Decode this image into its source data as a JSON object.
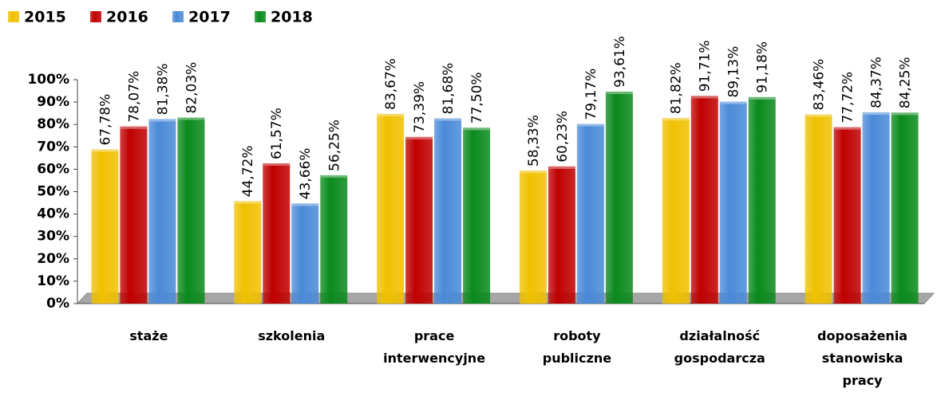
{
  "chart_data": {
    "type": "bar",
    "categories": [
      "staże",
      "szkolenia",
      "prace interwencyjne",
      "roboty publiczne",
      "działalność gospodarcza",
      "doposażenia stanowiska pracy"
    ],
    "series": [
      {
        "name": "2015",
        "color": "#f0c000",
        "values": [
          67.78,
          44.72,
          83.67,
          58.33,
          81.82,
          83.46
        ],
        "value_labels": [
          "67,78%",
          "44,72%",
          "83,67%",
          "58,33%",
          "81,82%",
          "83,46%"
        ]
      },
      {
        "name": "2016",
        "color": "#c00000",
        "values": [
          78.07,
          61.57,
          73.39,
          60.23,
          91.71,
          77.72
        ],
        "value_labels": [
          "78,07%",
          "61,57%",
          "73,39%",
          "60,23%",
          "91,71%",
          "77,72%"
        ]
      },
      {
        "name": "2017",
        "color": "#4a8ad8",
        "values": [
          81.38,
          43.66,
          81.68,
          79.17,
          89.13,
          84.37
        ],
        "value_labels": [
          "81,38%",
          "43,66%",
          "81,68%",
          "79,17%",
          "89,13%",
          "84,37%"
        ]
      },
      {
        "name": "2018",
        "color": "#0a8a1c",
        "values": [
          82.03,
          56.25,
          77.5,
          93.61,
          91.18,
          84.25
        ],
        "value_labels": [
          "82,03%",
          "56,25%",
          "77,50%",
          "93,61%",
          "91,18%",
          "84,25%"
        ]
      }
    ],
    "ylim": [
      0,
      100
    ],
    "yticks": [
      {
        "value": 0,
        "label": "0%"
      },
      {
        "value": 10,
        "label": "10%"
      },
      {
        "value": 20,
        "label": "20%"
      },
      {
        "value": 30,
        "label": "30%"
      },
      {
        "value": 40,
        "label": "40%"
      },
      {
        "value": 50,
        "label": "50%"
      },
      {
        "value": 60,
        "label": "60%"
      },
      {
        "value": 70,
        "label": "70%"
      },
      {
        "value": 80,
        "label": "80%"
      },
      {
        "value": 90,
        "label": "90%"
      },
      {
        "value": 100,
        "label": "100%"
      }
    ],
    "legend": "top-left"
  }
}
